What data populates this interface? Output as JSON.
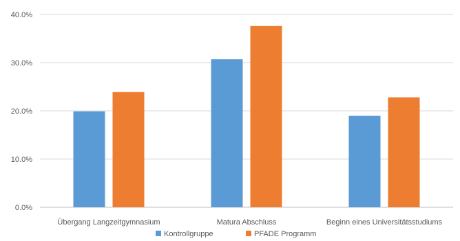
{
  "chart_data": {
    "type": "bar",
    "categories": [
      "Übergang Langzeitgymnasium",
      "Matura Abschluss",
      "Beginn eines Universitätsstudiums"
    ],
    "series": [
      {
        "name": "Kontrollgruppe",
        "values": [
          19.9,
          30.7,
          19.0
        ],
        "color": "#5b9bd5"
      },
      {
        "name": "PFADE Programm",
        "values": [
          23.9,
          37.6,
          22.8
        ],
        "color": "#ed7d31"
      }
    ],
    "yticks": [
      "0.0%",
      "10.0%",
      "20.0%",
      "30.0%",
      "40.0%"
    ],
    "ylim": [
      0,
      40
    ],
    "grid": true,
    "legend": "bottom",
    "title": "",
    "xlabel": "",
    "ylabel": ""
  }
}
